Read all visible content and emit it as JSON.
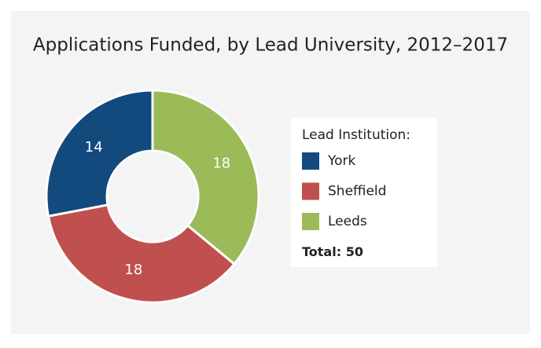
{
  "chart_data": {
    "type": "donut",
    "title": "Applications Funded, by Lead University, 2012–2017",
    "legend_title": "Lead Institution:",
    "total_label": "Total:",
    "total": 50,
    "series": [
      {
        "name": "York",
        "color": "#124a7e",
        "values": [
          14
        ]
      },
      {
        "name": "Sheffield",
        "color": "#c0504d",
        "values": [
          18
        ]
      },
      {
        "name": "Leeds",
        "color": "#9bbb59",
        "values": [
          18
        ]
      }
    ]
  }
}
